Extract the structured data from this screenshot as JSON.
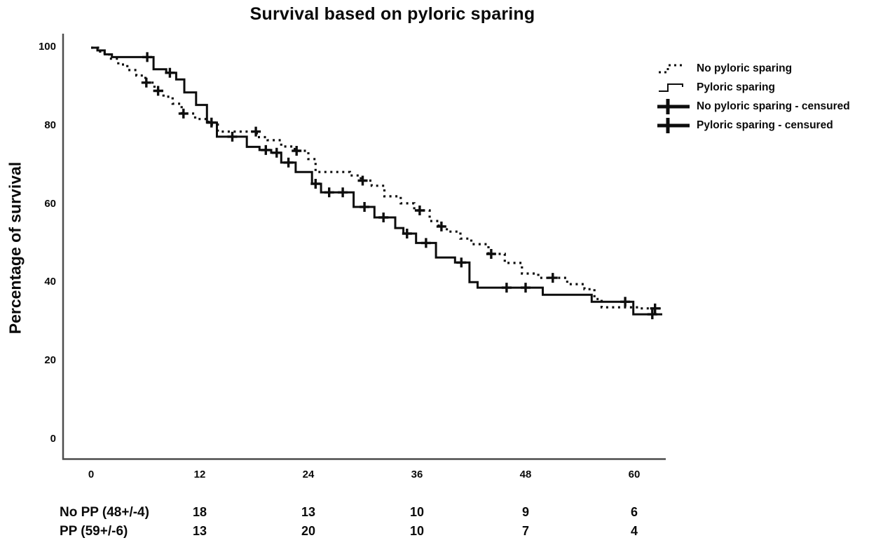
{
  "title": "Survival based on pyloric sparing",
  "ylabel": "Percentage of survival",
  "legend": [
    {
      "symbol": "dotted-step-line",
      "label": "No pyloric sparing"
    },
    {
      "symbol": "solid-step-line",
      "label": "Pyloric sparing"
    },
    {
      "symbol": "censor-plus",
      "label": "No pyloric sparing - censured"
    },
    {
      "symbol": "censor-plus",
      "label": "Pyloric sparing - censured"
    }
  ],
  "chart_data": {
    "type": "line",
    "subtype": "kaplan-meier-step",
    "title": "Survival based on pyloric sparing",
    "xlabel": "",
    "ylabel": "Percentage of survival",
    "xlim": [
      0,
      63.5
    ],
    "ylim": [
      0,
      100
    ],
    "xticks": [
      0,
      12,
      24,
      36,
      48,
      60
    ],
    "yticks": [
      0,
      20,
      40,
      60,
      80,
      100
    ],
    "grid": false,
    "legend_position": "upper-right",
    "colors": {
      "line": "#0d0d0d",
      "axis": "#4d4d4d"
    },
    "series": [
      {
        "name": "No pyloric sparing",
        "style": "dotted",
        "steps": [
          [
            0,
            100
          ],
          [
            1,
            98.6
          ],
          [
            2,
            97.2
          ],
          [
            3,
            95.7
          ],
          [
            4,
            94.3
          ],
          [
            5,
            92.9
          ],
          [
            6,
            91.1
          ],
          [
            7,
            89
          ],
          [
            8,
            87.5
          ],
          [
            9,
            85.7
          ],
          [
            10,
            83.2
          ],
          [
            11.5,
            81.8
          ],
          [
            13,
            80.4
          ],
          [
            14,
            78.6
          ],
          [
            18.3,
            77.2
          ],
          [
            19.5,
            76.4
          ],
          [
            21,
            74.8
          ],
          [
            22.5,
            73.7
          ],
          [
            24,
            71.6
          ],
          [
            24.8,
            68.3
          ],
          [
            28.6,
            67.4
          ],
          [
            29.8,
            66.1
          ],
          [
            31,
            64.8
          ],
          [
            32.4,
            62.1
          ],
          [
            34.2,
            60.3
          ],
          [
            35.7,
            58.5
          ],
          [
            37.4,
            55.8
          ],
          [
            38.4,
            54.4
          ],
          [
            39.3,
            53.1
          ],
          [
            40.8,
            51.3
          ],
          [
            42,
            49.9
          ],
          [
            43.9,
            47.4
          ],
          [
            45.7,
            45.1
          ],
          [
            47.6,
            42.4
          ],
          [
            49.4,
            41.3
          ],
          [
            52.6,
            39.7
          ],
          [
            54.5,
            38.4
          ],
          [
            55.6,
            35.9
          ],
          [
            56.4,
            33.8
          ],
          [
            60.5,
            33.5
          ],
          [
            63.3,
            33.5
          ]
        ],
        "censored": [
          [
            6.1,
            91.1
          ],
          [
            7.4,
            89
          ],
          [
            10.2,
            83.2
          ],
          [
            18.2,
            78.6
          ],
          [
            22.7,
            73.7
          ],
          [
            30,
            66.1
          ],
          [
            36.3,
            58.5
          ],
          [
            38.7,
            54.4
          ],
          [
            44.2,
            47.4
          ],
          [
            51,
            41.3
          ],
          [
            62.3,
            33.5
          ]
        ]
      },
      {
        "name": "Pyloric sparing",
        "style": "solid",
        "steps": [
          [
            0,
            100
          ],
          [
            0.7,
            99.3
          ],
          [
            1.5,
            98.3
          ],
          [
            2.3,
            97.6
          ],
          [
            6.9,
            94.5
          ],
          [
            8.3,
            93.6
          ],
          [
            9.4,
            91.9
          ],
          [
            10.3,
            88.6
          ],
          [
            11.6,
            85.4
          ],
          [
            12.8,
            80.9
          ],
          [
            13.9,
            77.3
          ],
          [
            17.2,
            74.7
          ],
          [
            18.6,
            73.9
          ],
          [
            19.9,
            73.2
          ],
          [
            21,
            70.7
          ],
          [
            22.6,
            68.3
          ],
          [
            24.4,
            65.3
          ],
          [
            25.4,
            63.1
          ],
          [
            29,
            59.4
          ],
          [
            31.3,
            56.7
          ],
          [
            33.6,
            54
          ],
          [
            34.5,
            52.6
          ],
          [
            35.9,
            50.2
          ],
          [
            38.1,
            46.5
          ],
          [
            40.2,
            45.2
          ],
          [
            41.8,
            40.2
          ],
          [
            42.7,
            38.8
          ],
          [
            49.9,
            37
          ],
          [
            55.3,
            35.2
          ],
          [
            59.9,
            32
          ],
          [
            63.1,
            32
          ]
        ],
        "censored": [
          [
            6.2,
            97.6
          ],
          [
            8.7,
            93.6
          ],
          [
            13.3,
            80.9
          ],
          [
            15.6,
            77.3
          ],
          [
            19.3,
            73.9
          ],
          [
            20.5,
            73.2
          ],
          [
            21.8,
            70.7
          ],
          [
            24.8,
            65.3
          ],
          [
            26.3,
            63.1
          ],
          [
            27.8,
            63.1
          ],
          [
            30.2,
            59.4
          ],
          [
            32.3,
            56.7
          ],
          [
            34.9,
            52.6
          ],
          [
            37,
            50.2
          ],
          [
            40.9,
            45.2
          ],
          [
            45.9,
            38.8
          ],
          [
            48,
            38.8
          ],
          [
            59,
            35.2
          ],
          [
            62,
            32
          ]
        ]
      }
    ],
    "risk_table": {
      "columns": [
        12,
        24,
        36,
        48,
        60
      ],
      "rows": [
        {
          "label": "No PP (48+/-4)",
          "counts": [
            18,
            13,
            10,
            9,
            6
          ]
        },
        {
          "label": "PP (59+/-6)",
          "counts": [
            13,
            20,
            10,
            7,
            4
          ]
        }
      ]
    }
  }
}
